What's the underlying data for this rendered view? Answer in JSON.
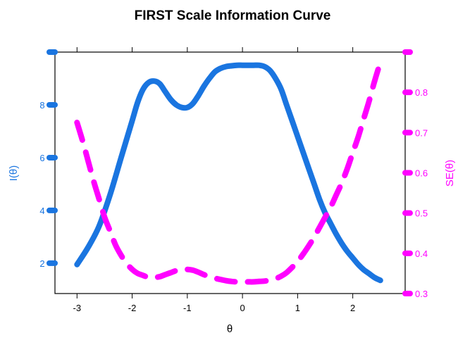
{
  "chart_data": {
    "type": "line",
    "title": "FIRST Scale Information Curve",
    "xlabel": "θ",
    "ylabel_left": "I(θ)",
    "ylabel_right": "SE(θ)",
    "xlim": [
      -3.4,
      2.95
    ],
    "ylim_left": [
      0.85,
      10.0
    ],
    "ylim_right": [
      0.3,
      0.9
    ],
    "x_ticks": [
      -3,
      -2,
      -1,
      0,
      1,
      2
    ],
    "x_tick_labels": [
      "-3",
      "-2",
      "-1",
      "0",
      "1",
      "2"
    ],
    "y_left_ticks": [
      2,
      4,
      6,
      8,
      10
    ],
    "y_left_tick_labels": [
      "2",
      "4",
      "6",
      "8",
      ""
    ],
    "y_right_ticks": [
      0.3,
      0.4,
      0.5,
      0.6,
      0.7,
      0.8,
      0.9
    ],
    "y_right_tick_labels": [
      "0.3",
      "0.4",
      "0.5",
      "0.6",
      "0.7",
      "0.8",
      ""
    ],
    "grid": false,
    "colors": {
      "information": "#1a75e0",
      "se": "#ff00ff"
    },
    "series": [
      {
        "id": "information",
        "axis": "left",
        "style": "solid",
        "x": [
          -3.0,
          -2.8,
          -2.6,
          -2.4,
          -2.2,
          -2.0,
          -1.9,
          -1.8,
          -1.7,
          -1.6,
          -1.5,
          -1.4,
          -1.3,
          -1.2,
          -1.1,
          -1.0,
          -0.9,
          -0.8,
          -0.7,
          -0.6,
          -0.5,
          -0.4,
          -0.3,
          -0.2,
          -0.1,
          0.0,
          0.1,
          0.2,
          0.3,
          0.4,
          0.5,
          0.6,
          0.7,
          0.8,
          0.9,
          1.0,
          1.1,
          1.2,
          1.3,
          1.4,
          1.5,
          1.6,
          1.7,
          1.8,
          1.9,
          2.0,
          2.1,
          2.2,
          2.3,
          2.4,
          2.5
        ],
        "values": [
          1.95,
          2.6,
          3.4,
          4.6,
          6.0,
          7.4,
          8.1,
          8.6,
          8.85,
          8.9,
          8.8,
          8.5,
          8.2,
          8.0,
          7.9,
          7.9,
          8.05,
          8.35,
          8.7,
          9.0,
          9.25,
          9.38,
          9.45,
          9.48,
          9.5,
          9.5,
          9.5,
          9.5,
          9.5,
          9.45,
          9.3,
          9.0,
          8.6,
          8.0,
          7.4,
          6.8,
          6.2,
          5.6,
          5.0,
          4.4,
          3.9,
          3.5,
          3.1,
          2.75,
          2.45,
          2.2,
          1.95,
          1.75,
          1.6,
          1.45,
          1.35
        ]
      },
      {
        "id": "se",
        "axis": "right",
        "style": "dashed",
        "x": [
          -3.0,
          -2.9,
          -2.8,
          -2.7,
          -2.6,
          -2.5,
          -2.4,
          -2.3,
          -2.2,
          -2.1,
          -2.0,
          -1.9,
          -1.8,
          -1.7,
          -1.6,
          -1.5,
          -1.4,
          -1.3,
          -1.2,
          -1.1,
          -1.0,
          -0.9,
          -0.8,
          -0.7,
          -0.6,
          -0.5,
          -0.4,
          -0.3,
          -0.2,
          -0.1,
          0.0,
          0.1,
          0.2,
          0.3,
          0.4,
          0.5,
          0.6,
          0.7,
          0.8,
          0.9,
          1.0,
          1.1,
          1.2,
          1.3,
          1.4,
          1.5,
          1.6,
          1.7,
          1.8,
          1.9,
          2.0,
          2.1,
          2.2,
          2.3,
          2.4,
          2.5
        ],
        "values": [
          0.725,
          0.68,
          0.63,
          0.58,
          0.535,
          0.49,
          0.455,
          0.42,
          0.395,
          0.375,
          0.36,
          0.35,
          0.345,
          0.34,
          0.34,
          0.342,
          0.347,
          0.352,
          0.357,
          0.36,
          0.36,
          0.358,
          0.353,
          0.347,
          0.342,
          0.338,
          0.335,
          0.332,
          0.33,
          0.329,
          0.329,
          0.329,
          0.329,
          0.33,
          0.331,
          0.333,
          0.337,
          0.343,
          0.352,
          0.365,
          0.38,
          0.398,
          0.418,
          0.44,
          0.465,
          0.49,
          0.515,
          0.545,
          0.575,
          0.61,
          0.65,
          0.69,
          0.735,
          0.78,
          0.83,
          0.875
        ]
      }
    ]
  }
}
